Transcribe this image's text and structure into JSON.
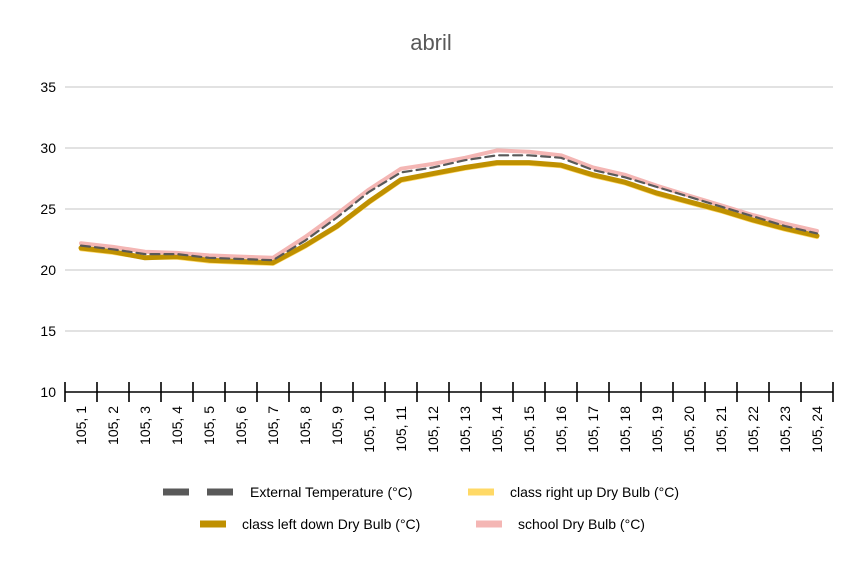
{
  "chart_data": {
    "type": "line",
    "title": "abril",
    "xlabel": "",
    "ylabel": "",
    "ylim": [
      10,
      35
    ],
    "yticks": [
      10,
      15,
      20,
      25,
      30,
      35
    ],
    "grid": true,
    "legend_position": "bottom",
    "categories": [
      "105, 1",
      "105, 2",
      "105, 3",
      "105, 4",
      "105, 5",
      "105, 6",
      "105, 7",
      "105, 8",
      "105, 9",
      "105, 10",
      "105, 11",
      "105, 12",
      "105, 13",
      "105, 14",
      "105, 15",
      "105, 16",
      "105, 17",
      "105, 18",
      "105, 19",
      "105, 20",
      "105, 21",
      "105, 22",
      "105, 23",
      "105, 24"
    ],
    "series": [
      {
        "name": "External Temperature (°C)",
        "color": "#595959",
        "dash": true,
        "values": [
          22.0,
          21.7,
          21.3,
          21.3,
          21.0,
          20.9,
          20.8,
          22.4,
          24.3,
          26.4,
          28.0,
          28.4,
          29.0,
          29.4,
          29.4,
          29.2,
          28.2,
          27.6,
          26.8,
          26.0,
          25.2,
          24.4,
          23.6,
          23.0
        ]
      },
      {
        "name": "class right up Dry Bulb (°C)",
        "color": "#ffd966",
        "dash": false,
        "values": [
          21.7,
          21.4,
          21.0,
          21.0,
          20.7,
          20.6,
          20.5,
          21.9,
          23.5,
          25.5,
          27.3,
          27.8,
          28.3,
          28.7,
          28.7,
          28.5,
          27.7,
          27.1,
          26.2,
          25.5,
          24.8,
          24.0,
          23.3,
          22.7
        ]
      },
      {
        "name": "class left down Dry Bulb (°C)",
        "color": "#bf9000",
        "dash": false,
        "values": [
          21.8,
          21.5,
          21.0,
          21.1,
          20.8,
          20.7,
          20.6,
          22.0,
          23.6,
          25.6,
          27.4,
          27.9,
          28.4,
          28.8,
          28.8,
          28.6,
          27.8,
          27.2,
          26.3,
          25.6,
          24.9,
          24.1,
          23.4,
          22.8
        ]
      },
      {
        "name": "school Dry Bulb (°C)",
        "color": "#f4b6b4",
        "dash": false,
        "values": [
          22.2,
          21.9,
          21.5,
          21.4,
          21.2,
          21.1,
          21.0,
          22.7,
          24.6,
          26.6,
          28.3,
          28.7,
          29.2,
          29.8,
          29.7,
          29.4,
          28.4,
          27.8,
          26.9,
          26.1,
          25.3,
          24.5,
          23.8,
          23.2
        ]
      }
    ]
  }
}
